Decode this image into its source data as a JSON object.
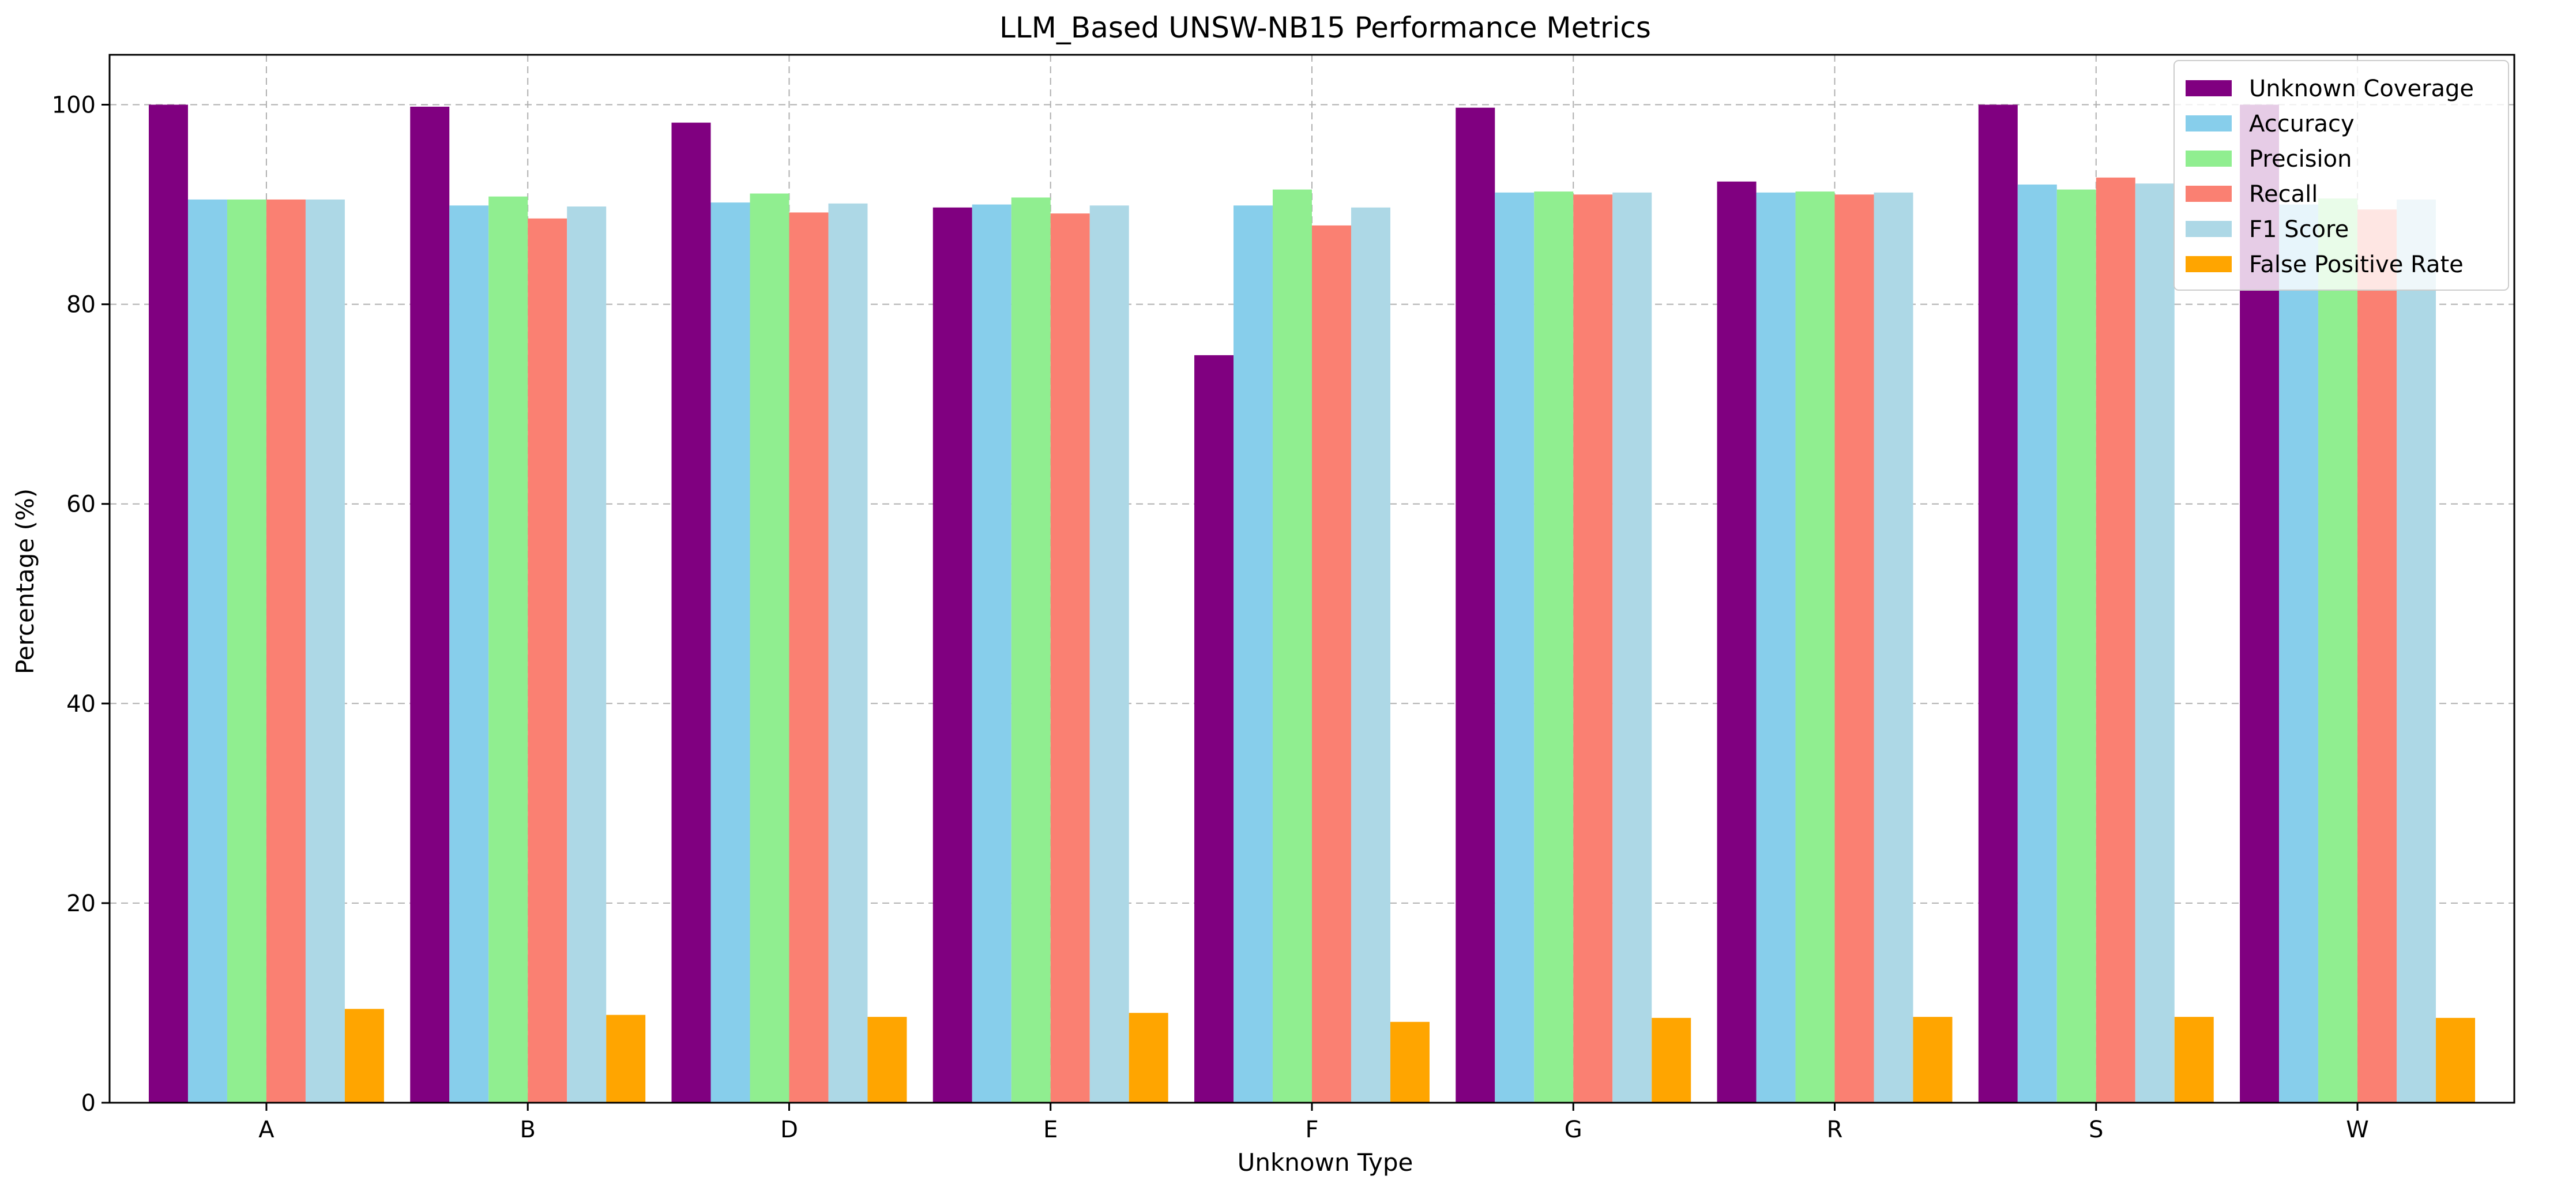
{
  "chart_data": {
    "type": "bar",
    "title": "LLM_Based UNSW-NB15 Performance Metrics",
    "xlabel": "Unknown Type",
    "ylabel": "Percentage (%)",
    "ylim": [
      0,
      105
    ],
    "yticks": [
      0,
      20,
      40,
      60,
      80,
      100
    ],
    "grid": true,
    "legend_position": "top-right",
    "categories": [
      "A",
      "B",
      "D",
      "E",
      "F",
      "G",
      "R",
      "S",
      "W"
    ],
    "series": [
      {
        "name": "Unknown Coverage",
        "color": "#800080",
        "values": [
          100.0,
          99.8,
          98.2,
          89.7,
          74.9,
          99.7,
          92.3,
          100.0,
          100.0
        ]
      },
      {
        "name": "Accuracy",
        "color": "#87CEEB",
        "values": [
          90.5,
          89.9,
          90.2,
          90.0,
          89.9,
          91.2,
          91.2,
          92.0,
          90.0
        ]
      },
      {
        "name": "Precision",
        "color": "#90EE90",
        "values": [
          90.5,
          90.8,
          91.1,
          90.7,
          91.5,
          91.3,
          91.3,
          91.5,
          90.6
        ]
      },
      {
        "name": "Recall",
        "color": "#FA8072",
        "values": [
          90.5,
          88.6,
          89.2,
          89.1,
          87.9,
          91.0,
          91.0,
          92.7,
          89.5
        ]
      },
      {
        "name": "F1 Score",
        "color": "#ADD8E6",
        "values": [
          90.5,
          89.8,
          90.1,
          89.9,
          89.7,
          91.2,
          91.2,
          92.1,
          90.5
        ]
      },
      {
        "name": "False Positive Rate",
        "color": "#FFA500",
        "values": [
          9.4,
          8.8,
          8.6,
          9.0,
          8.1,
          8.5,
          8.6,
          8.6,
          8.5
        ]
      }
    ]
  }
}
